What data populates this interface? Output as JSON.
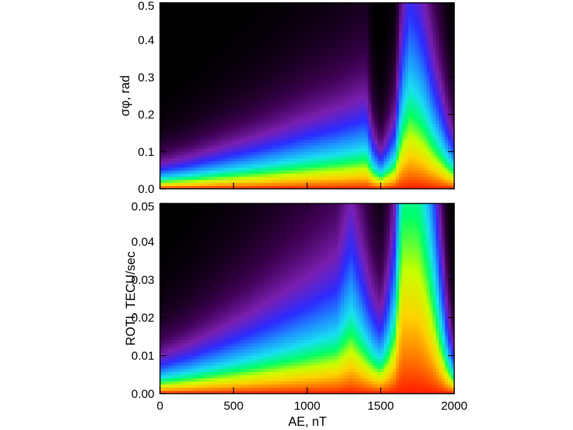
{
  "chart_data": [
    {
      "type": "heatmap",
      "panel": "top",
      "xlabel": "",
      "ylabel": "σφ, rad",
      "xlim": [
        0,
        2000
      ],
      "ylim": [
        0,
        0.5
      ],
      "xticks": [],
      "yticks": [
        "0.0",
        "0.1",
        "0.2",
        "0.3",
        "0.4",
        "0.5"
      ],
      "colormap": [
        "#000000",
        "#3c0050",
        "#7a1fb0",
        "#2b2bff",
        "#1e90ff",
        "#18e0f0",
        "#00ff66",
        "#c8ff00",
        "#ffd200",
        "#ff7a00",
        "#ff1a00"
      ],
      "ridge": {
        "x": [
          0,
          200,
          400,
          600,
          800,
          1000,
          1200,
          1300,
          1400,
          1450,
          1500,
          1550,
          1600,
          1650,
          1700,
          1750,
          1800,
          1850,
          1900,
          1950,
          2000
        ],
        "scale": [
          0.024,
          0.03,
          0.038,
          0.046,
          0.055,
          0.065,
          0.074,
          0.08,
          0.086,
          0.05,
          0.035,
          0.05,
          0.07,
          0.17,
          0.22,
          0.2,
          0.17,
          0.13,
          0.1,
          0.07,
          0.05
        ]
      }
    },
    {
      "type": "heatmap",
      "panel": "bottom",
      "xlabel": "AE, nT",
      "ylabel": "ROTI, TECU/sec",
      "xlim": [
        0,
        2000
      ],
      "ylim": [
        0,
        0.05
      ],
      "xticks": [
        "0",
        "500",
        "1000",
        "1500",
        "2000"
      ],
      "yticks": [
        "0.00",
        "0.01",
        "0.02",
        "0.03",
        "0.04",
        "0.05"
      ],
      "colormap": [
        "#000000",
        "#3c0050",
        "#7a1fb0",
        "#2b2bff",
        "#1e90ff",
        "#18e0f0",
        "#00ff66",
        "#c8ff00",
        "#ffd200",
        "#ff7a00",
        "#ff1a00"
      ],
      "ridge": {
        "x": [
          0,
          200,
          400,
          600,
          800,
          1000,
          1200,
          1300,
          1400,
          1450,
          1500,
          1550,
          1600,
          1650,
          1700,
          1750,
          1800,
          1850,
          1900,
          1950,
          2000
        ],
        "scale": [
          0.0035,
          0.0045,
          0.0058,
          0.0072,
          0.0088,
          0.0105,
          0.0125,
          0.0175,
          0.0115,
          0.009,
          0.0075,
          0.011,
          0.018,
          0.05,
          0.05,
          0.05,
          0.04,
          0.028,
          0.016,
          0.008,
          0.004
        ]
      }
    }
  ]
}
